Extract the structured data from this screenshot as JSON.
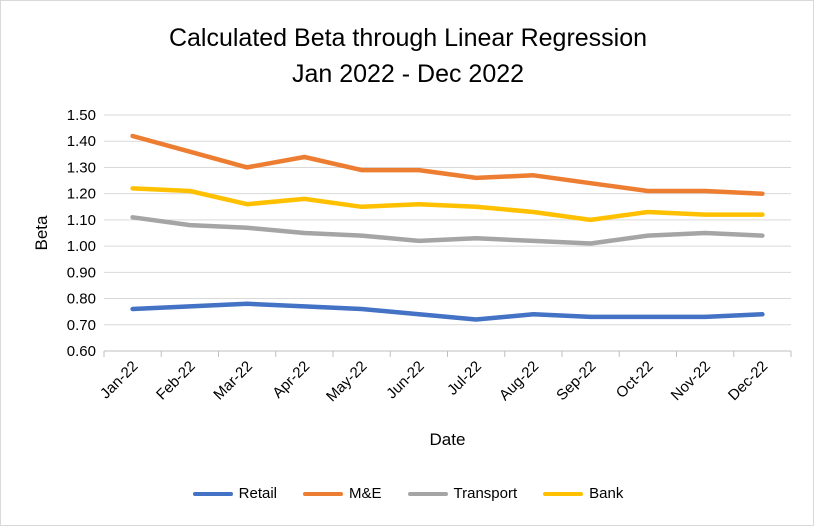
{
  "chart_data": {
    "type": "line",
    "title_line1": "Calculated Beta through Linear Regression",
    "title_line2": "Jan 2022 - Dec 2022",
    "xlabel": "Date",
    "ylabel": "Beta",
    "ylim": [
      0.6,
      1.5
    ],
    "ytick_step": 0.1,
    "grid": true,
    "legend_position": "bottom",
    "categories": [
      "Jan-22",
      "Feb-22",
      "Mar-22",
      "Apr-22",
      "May-22",
      "Jun-22",
      "Jul-22",
      "Aug-22",
      "Sep-22",
      "Oct-22",
      "Nov-22",
      "Dec-22"
    ],
    "series": [
      {
        "name": "Retail",
        "color": "#4472c4",
        "values": [
          0.76,
          0.77,
          0.78,
          0.77,
          0.76,
          0.74,
          0.72,
          0.74,
          0.73,
          0.73,
          0.73,
          0.74
        ]
      },
      {
        "name": "M&E",
        "color": "#ed7d31",
        "values": [
          1.42,
          1.36,
          1.3,
          1.34,
          1.29,
          1.29,
          1.26,
          1.27,
          1.24,
          1.21,
          1.21,
          1.2
        ]
      },
      {
        "name": "Transport",
        "color": "#a5a5a5",
        "values": [
          1.11,
          1.08,
          1.07,
          1.05,
          1.04,
          1.02,
          1.03,
          1.02,
          1.01,
          1.04,
          1.05,
          1.04
        ]
      },
      {
        "name": "Bank",
        "color": "#ffc000",
        "values": [
          1.22,
          1.21,
          1.16,
          1.18,
          1.15,
          1.16,
          1.15,
          1.13,
          1.1,
          1.13,
          1.12,
          1.12
        ]
      }
    ]
  }
}
